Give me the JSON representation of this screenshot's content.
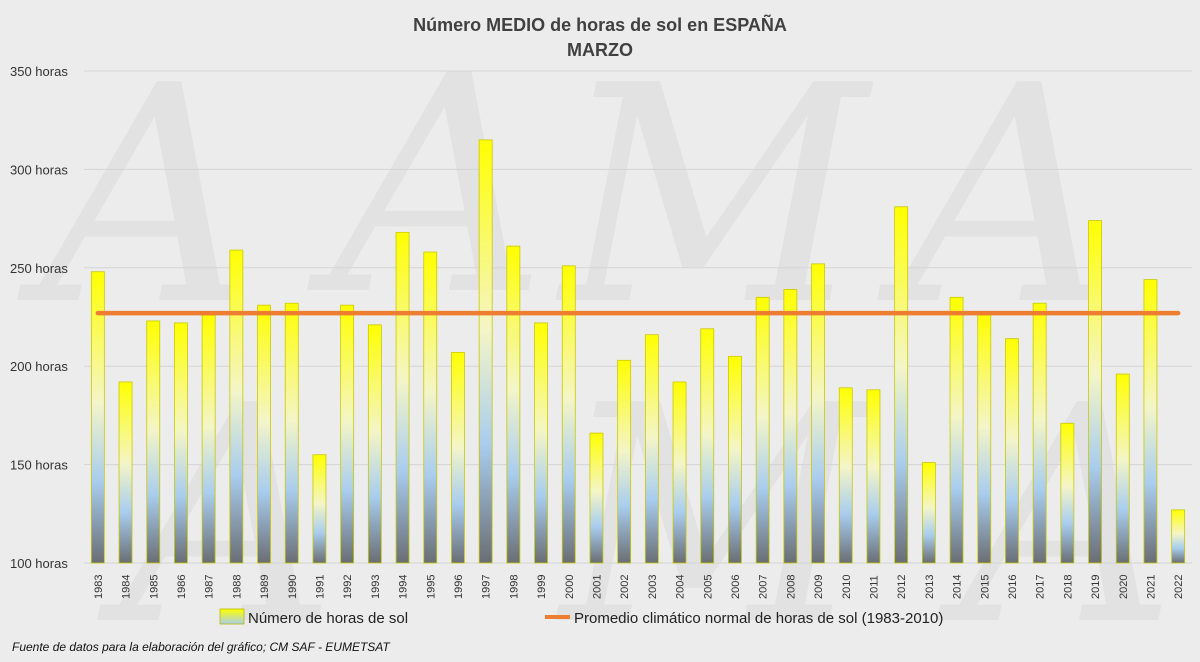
{
  "chart_data": {
    "type": "bar",
    "title": "Número MEDIO de horas de sol en ESPAÑA",
    "subtitle": "MARZO",
    "categories": [
      "1983",
      "1984",
      "1985",
      "1986",
      "1987",
      "1988",
      "1989",
      "1990",
      "1991",
      "1992",
      "1993",
      "1994",
      "1995",
      "1996",
      "1997",
      "1998",
      "1999",
      "2000",
      "2001",
      "2002",
      "2003",
      "2004",
      "2005",
      "2006",
      "2007",
      "2008",
      "2009",
      "2010",
      "2011",
      "2012",
      "2013",
      "2014",
      "2015",
      "2016",
      "2017",
      "2018",
      "2019",
      "2020",
      "2021",
      "2022"
    ],
    "series": [
      {
        "name": "Número de horas de sol",
        "type": "bar",
        "values": [
          248,
          192,
          223,
          222,
          226,
          259,
          231,
          232,
          155,
          231,
          221,
          268,
          258,
          207,
          315,
          261,
          222,
          251,
          166,
          203,
          216,
          192,
          219,
          205,
          235,
          239,
          252,
          189,
          188,
          281,
          151,
          235,
          226,
          214,
          232,
          171,
          274,
          196,
          244,
          127
        ]
      },
      {
        "name": "Promedio climático normal de horas de sol (1983-2010)",
        "type": "line",
        "value": 227,
        "color": "#ed7d31"
      }
    ],
    "ylim": [
      100,
      350
    ],
    "yticks": [
      100,
      150,
      200,
      250,
      300,
      350
    ],
    "ytick_suffix": " horas",
    "grid": true,
    "legend_position": "bottom",
    "source": "Fuente de datos para la elaboración del gráfico; CM SAF - EUMETSAT"
  }
}
